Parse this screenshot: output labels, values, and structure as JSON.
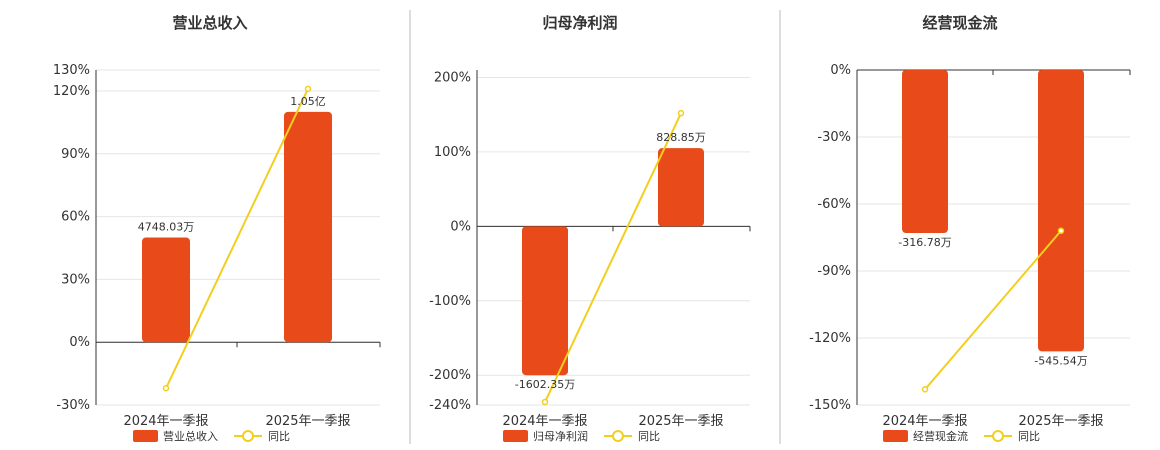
{
  "colors": {
    "bar": "#e84a1a",
    "line": "#f2cf1e"
  },
  "chart_data": [
    {
      "type": "bar",
      "title": "营业总收入",
      "categories": [
        "2024年一季报",
        "2025年一季报"
      ],
      "bar_name": "营业总收入",
      "line_name": "同比",
      "bar_values_pct": [
        50,
        110
      ],
      "bar_labels": [
        "4748.03万",
        "1.05亿"
      ],
      "line_values_pct": [
        -22,
        121
      ],
      "ylim": [
        -30,
        130
      ],
      "yticks": [
        -30,
        0,
        30,
        60,
        90,
        120,
        130
      ],
      "ytick_labels": [
        "-30%",
        "0%",
        "30%",
        "60%",
        "90%",
        "120%",
        "130%"
      ],
      "grid": true
    },
    {
      "type": "bar",
      "title": "归母净利润",
      "categories": [
        "2024年一季报",
        "2025年一季报"
      ],
      "bar_name": "归母净利润",
      "line_name": "同比",
      "bar_values_pct": [
        -200,
        105
      ],
      "bar_labels": [
        "-1602.35万",
        "828.85万"
      ],
      "line_values_pct": [
        -236,
        152
      ],
      "ylim": [
        -240,
        210
      ],
      "yticks": [
        -240,
        -200,
        -100,
        0,
        100,
        200
      ],
      "ytick_labels": [
        "-240%",
        "-200%",
        "-100%",
        "0%",
        "100%",
        "200%"
      ],
      "grid": true
    },
    {
      "type": "bar",
      "title": "经营现金流",
      "categories": [
        "2024年一季报",
        "2025年一季报"
      ],
      "bar_name": "经营现金流",
      "line_name": "同比",
      "bar_values_pct": [
        -73,
        -126
      ],
      "bar_labels": [
        "-316.78万",
        "-545.54万"
      ],
      "line_values_pct": [
        -143,
        -72
      ],
      "ylim": [
        -150,
        0
      ],
      "yticks": [
        -150,
        -120,
        -90,
        -60,
        -30,
        0
      ],
      "ytick_labels": [
        "-150%",
        "-120%",
        "-90%",
        "-60%",
        "-30%",
        "0%"
      ],
      "grid": true
    }
  ]
}
